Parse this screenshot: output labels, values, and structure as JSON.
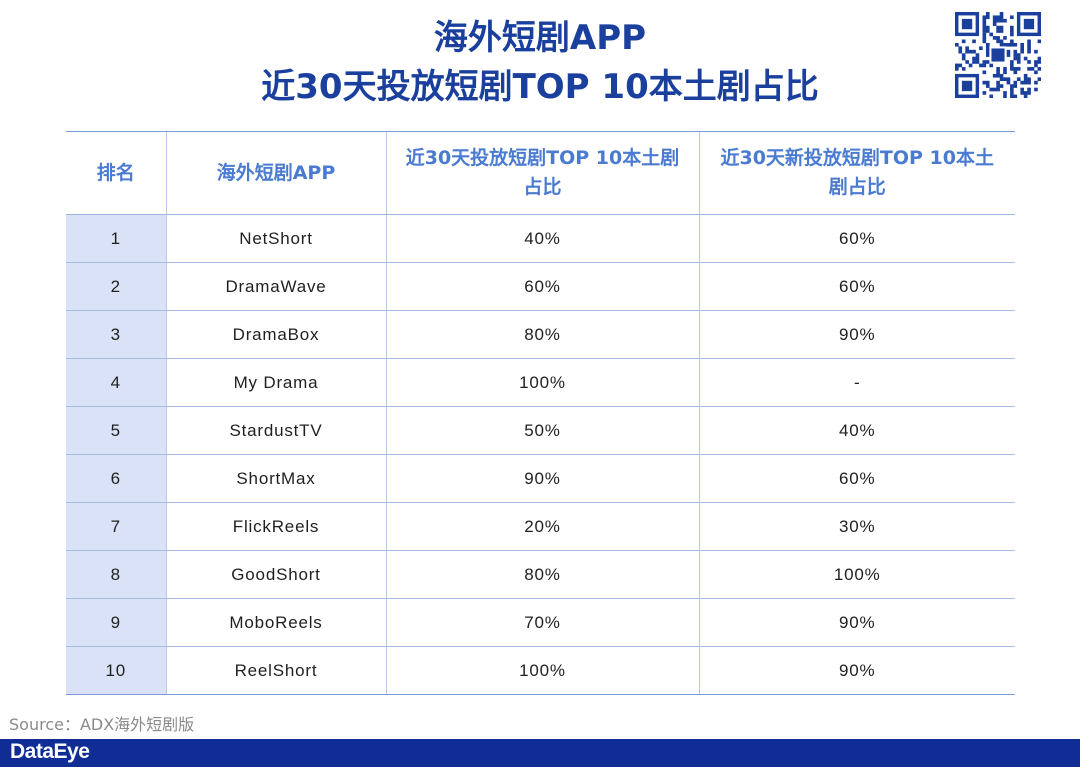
{
  "title": {
    "line1": "海外短剧APP",
    "line2": "近30天投放短剧TOP 10本土剧占比"
  },
  "qr_code": {
    "icon": "qr-code-icon",
    "color": "#1a3f9c"
  },
  "table": {
    "headers": [
      "排名",
      "海外短剧APP",
      "近30天投放短剧TOP 10本土剧占比",
      "近30天新投放短剧TOP 10本土剧占比"
    ],
    "rows": [
      [
        "1",
        "NetShort",
        "40%",
        "60%"
      ],
      [
        "2",
        "DramaWave",
        "60%",
        "60%"
      ],
      [
        "3",
        "DramaBox",
        "80%",
        "90%"
      ],
      [
        "4",
        "My Drama",
        "100%",
        "-"
      ],
      [
        "5",
        "StardustTV",
        "50%",
        "40%"
      ],
      [
        "6",
        "ShortMax",
        "90%",
        "60%"
      ],
      [
        "7",
        "FlickReels",
        "20%",
        "30%"
      ],
      [
        "8",
        "GoodShort",
        "80%",
        "100%"
      ],
      [
        "9",
        "MoboReels",
        "70%",
        "90%"
      ],
      [
        "10",
        "ReelShort",
        "100%",
        "90%"
      ]
    ]
  },
  "source": "Source：ADX海外短剧版",
  "footer": {
    "logo_text": "DataEye",
    "bar_color": "#0f2d94"
  },
  "colors": {
    "title": "#1a3f9c",
    "header_text": "#4a7bd1",
    "rank_cell_bg": "#d9e2f6"
  }
}
